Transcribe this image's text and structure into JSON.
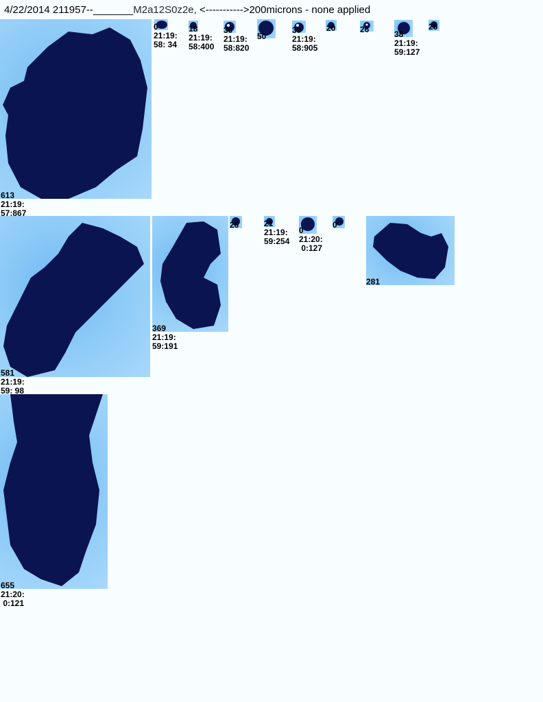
{
  "header": {
    "date_id": "4/22/2014 211957--",
    "blank": "_______",
    "overlap_text": "M2a12S0z2e,",
    "scale_text": "<----------->200microns - none applied"
  },
  "particles": [
    {
      "id": "p613",
      "size": "613",
      "time1": "21:19:",
      "time2": "57:867"
    },
    {
      "id": "p0a",
      "size": "0",
      "time1": "21:19:",
      "time2": "58: 34"
    },
    {
      "id": "p18",
      "size": "18",
      "time1": "21:19:",
      "time2": "58:400"
    },
    {
      "id": "p30a",
      "size": "30",
      "time1": "21:19:",
      "time2": "58:820"
    },
    {
      "id": "p50",
      "size": "50",
      "time1": "",
      "time2": ""
    },
    {
      "id": "p30b",
      "size": "30",
      "time1": "21:19:",
      "time2": "58:905"
    },
    {
      "id": "p20",
      "size": "20",
      "time1": "",
      "time2": ""
    },
    {
      "id": "p26a",
      "size": "26",
      "time1": "",
      "time2": ""
    },
    {
      "id": "p38",
      "size": "38",
      "time1": "21:19:",
      "time2": "59:127"
    },
    {
      "id": "p25",
      "size": "25",
      "time1": "",
      "time2": ""
    },
    {
      "id": "p581",
      "size": "581",
      "time1": "21:19:",
      "time2": "59: 98"
    },
    {
      "id": "p369",
      "size": "369",
      "time1": "21:19:",
      "time2": "59:191"
    },
    {
      "id": "p26b",
      "size": "26",
      "time1": "",
      "time2": ""
    },
    {
      "id": "p21",
      "size": "21",
      "time1": "21:19:",
      "time2": "59:254"
    },
    {
      "id": "p0b",
      "size": "0",
      "time1": "21:20:",
      "time2": " 0:127"
    },
    {
      "id": "p0c",
      "size": "0",
      "time1": "",
      "time2": ""
    },
    {
      "id": "p281",
      "size": "281",
      "time1": "",
      "time2": ""
    },
    {
      "id": "p655",
      "size": "655",
      "time1": "21:20:",
      "time2": " 0:121"
    }
  ]
}
